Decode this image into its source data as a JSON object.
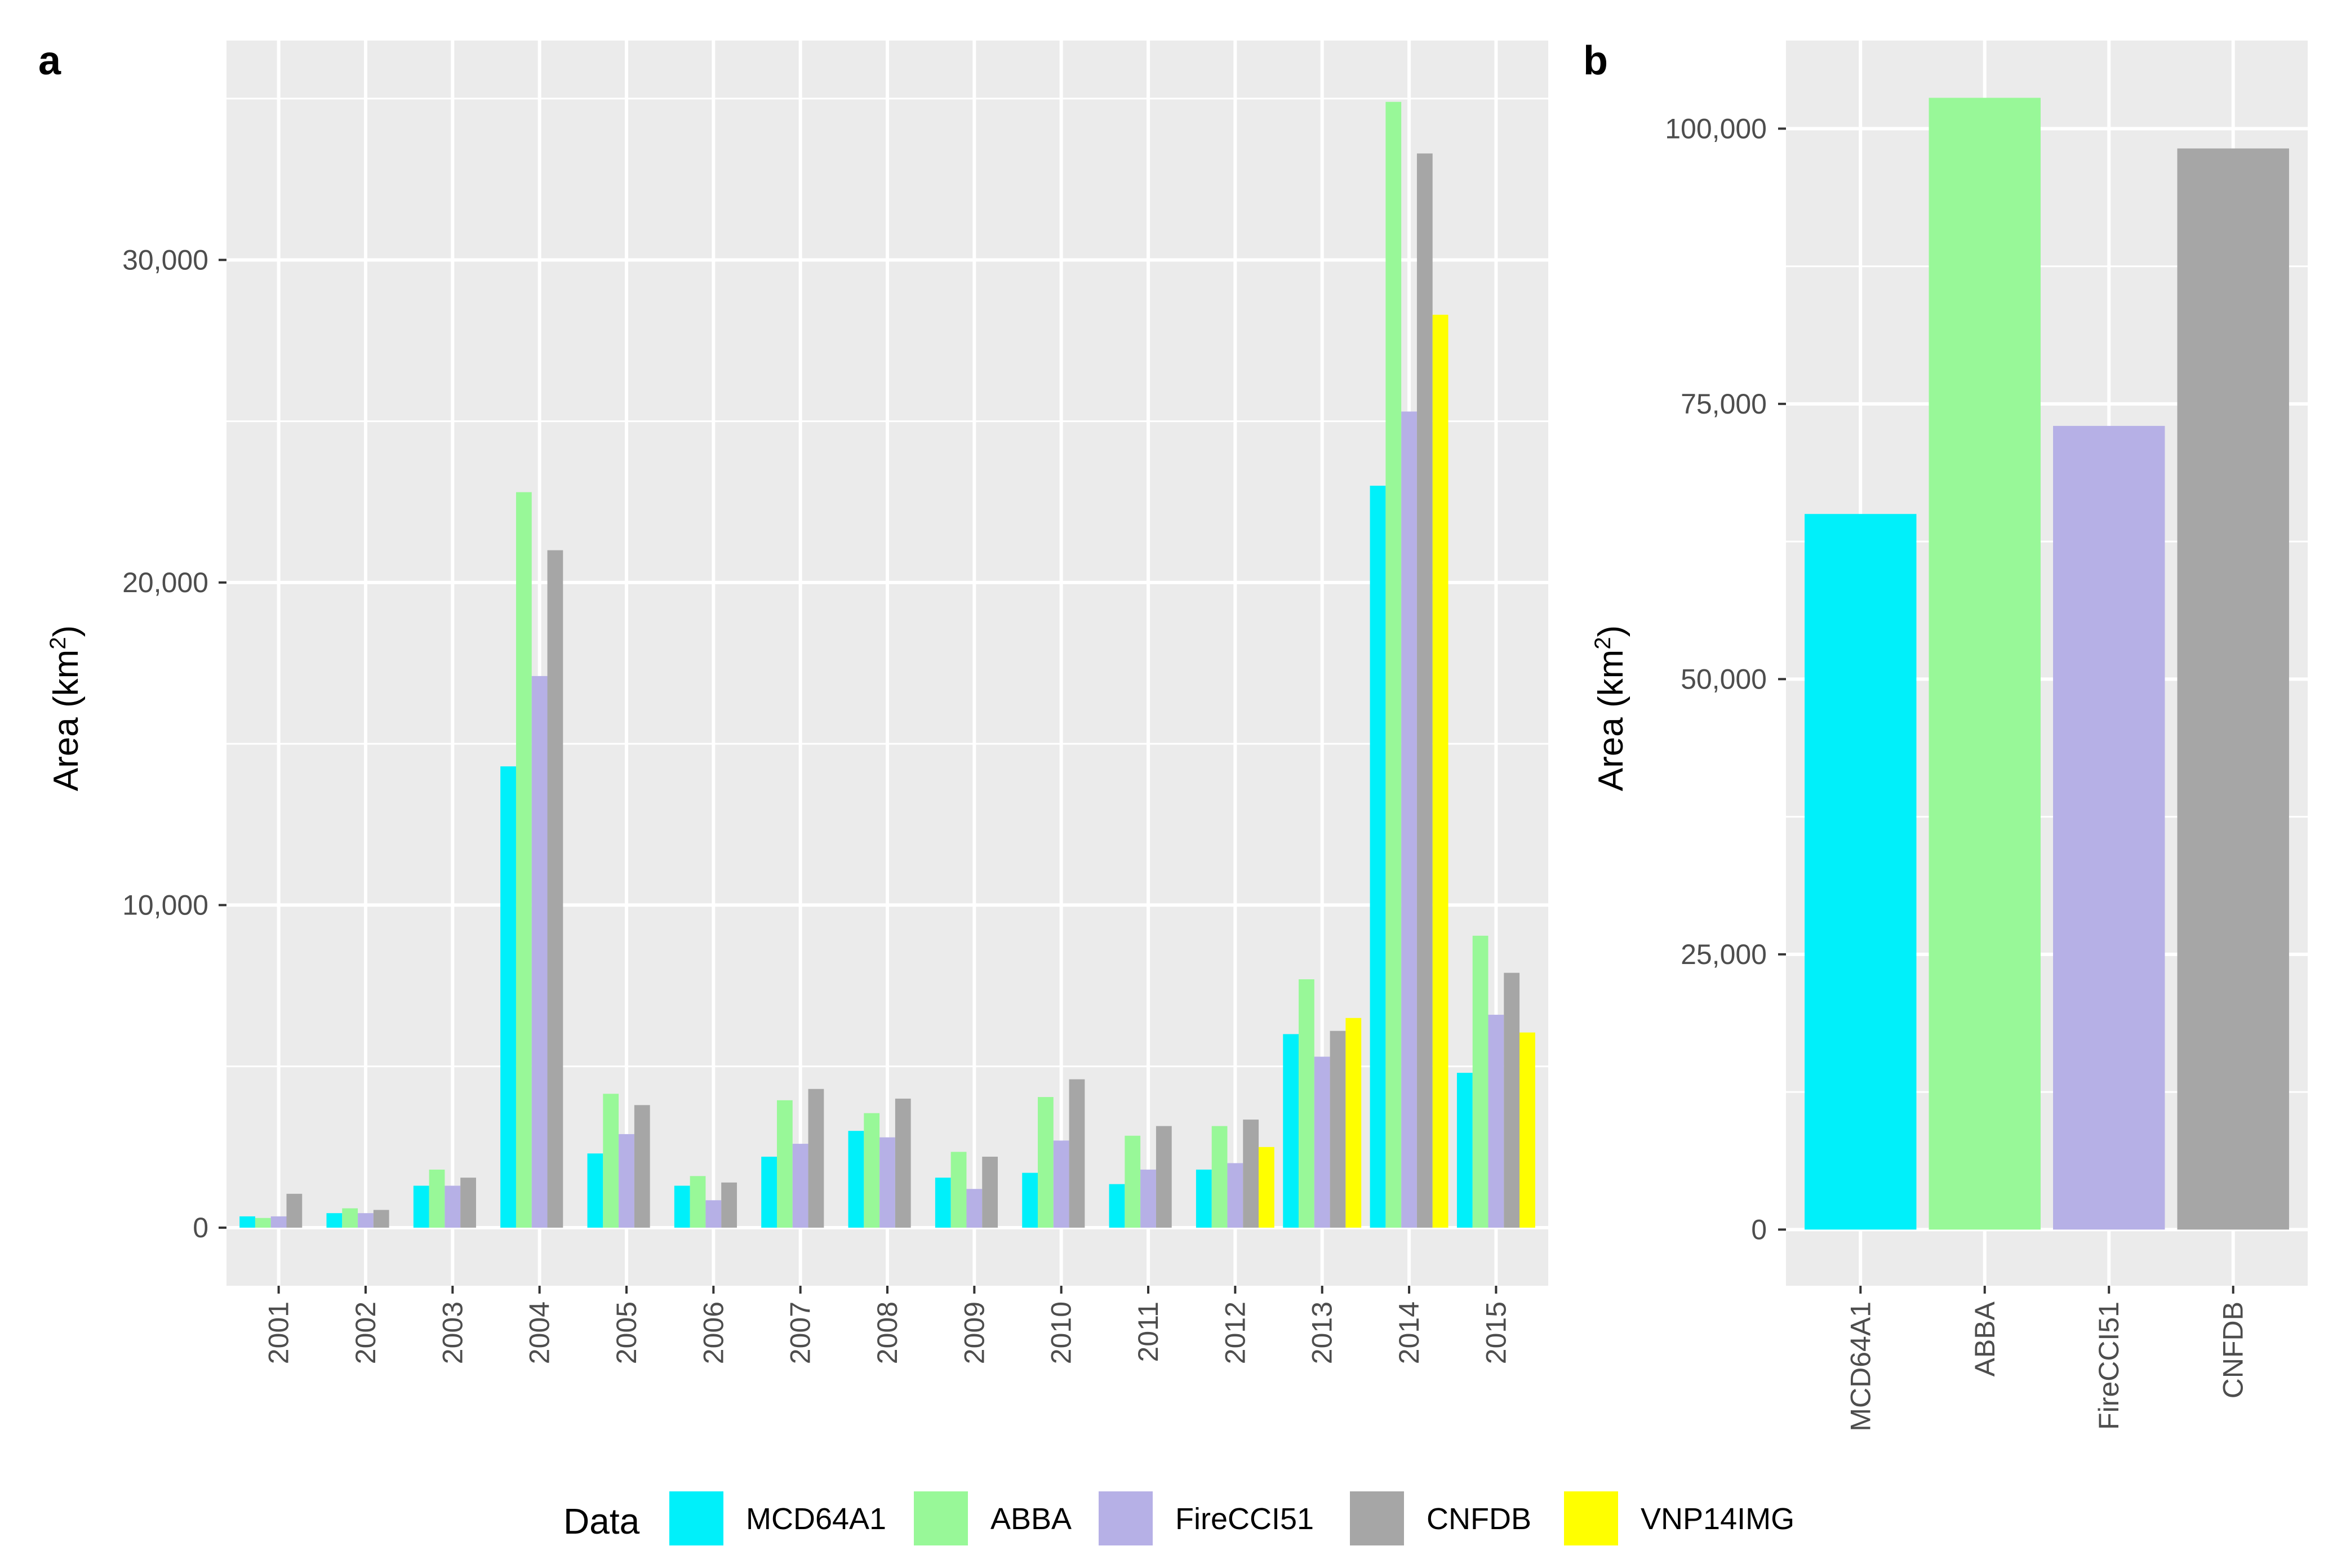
{
  "chart_data": [
    {
      "panel_label": "a",
      "type": "bar",
      "title": "",
      "xlabel": "",
      "ylabel": "Area (km",
      "ylabel_sup": "2",
      "ylabel_close": ")",
      "ylim": [
        -1800,
        36800
      ],
      "yticks": [
        0,
        10000,
        20000,
        30000
      ],
      "ytick_labels": [
        "0",
        "10,000",
        "20,000",
        "30,000"
      ],
      "grid": true,
      "categories": [
        "2001",
        "2002",
        "2003",
        "2004",
        "2005",
        "2006",
        "2007",
        "2008",
        "2009",
        "2010",
        "2011",
        "2012",
        "2013",
        "2014",
        "2015"
      ],
      "series": [
        {
          "name": "MCD64A1",
          "color": "#00f0fa",
          "values": [
            350,
            450,
            1300,
            14300,
            2300,
            1300,
            2200,
            3000,
            1550,
            1700,
            1350,
            1800,
            6000,
            23000,
            4800
          ]
        },
        {
          "name": "ABBA",
          "color": "#98f898",
          "values": [
            300,
            600,
            1800,
            22800,
            4150,
            1600,
            3950,
            3550,
            2350,
            4050,
            2850,
            3150,
            7700,
            34900,
            9050
          ]
        },
        {
          "name": "FireCCI51",
          "color": "#b6b0e6",
          "values": [
            350,
            450,
            1300,
            17100,
            2900,
            850,
            2600,
            2800,
            1200,
            2700,
            1800,
            2000,
            5300,
            25300,
            6600
          ]
        },
        {
          "name": "CNFDB",
          "color": "#a6a6a6",
          "values": [
            1050,
            550,
            1550,
            21000,
            3800,
            1400,
            4300,
            4000,
            2200,
            4600,
            3150,
            3350,
            6100,
            33300,
            7900
          ]
        },
        {
          "name": "VNP14IMG",
          "color": "#ffff00",
          "values": [
            null,
            null,
            null,
            null,
            null,
            null,
            null,
            null,
            null,
            null,
            null,
            2500,
            6500,
            28300,
            6050
          ]
        }
      ]
    },
    {
      "panel_label": "b",
      "type": "bar",
      "title": "",
      "xlabel": "",
      "ylabel": "Area (km",
      "ylabel_sup": "2",
      "ylabel_close": ")",
      "ylim": [
        -5100,
        108000
      ],
      "yticks": [
        0,
        25000,
        50000,
        75000,
        100000
      ],
      "ytick_labels": [
        "0",
        "25,000",
        "50,000",
        "75,000",
        "100,000"
      ],
      "grid": true,
      "categories": [
        "MCD64A1",
        "ABBA",
        "FireCCI51",
        "CNFDB"
      ],
      "values": [
        65000,
        102800,
        73000,
        98200
      ],
      "colors": [
        "#00f0fa",
        "#98f898",
        "#b6b0e6",
        "#a6a6a6"
      ]
    }
  ],
  "legend": {
    "title": "Data",
    "position": "bottom",
    "items": [
      {
        "label": "MCD64A1",
        "color": "#00f0fa"
      },
      {
        "label": "ABBA",
        "color": "#98f898"
      },
      {
        "label": "FireCCI51",
        "color": "#b6b0e6"
      },
      {
        "label": "CNFDB",
        "color": "#a6a6a6"
      },
      {
        "label": "VNP14IMG",
        "color": "#ffff00"
      }
    ]
  },
  "theme": {
    "panel_bg": "#ebebeb",
    "grid_color": "#ffffff",
    "axis_text": "#4d4d4d"
  }
}
